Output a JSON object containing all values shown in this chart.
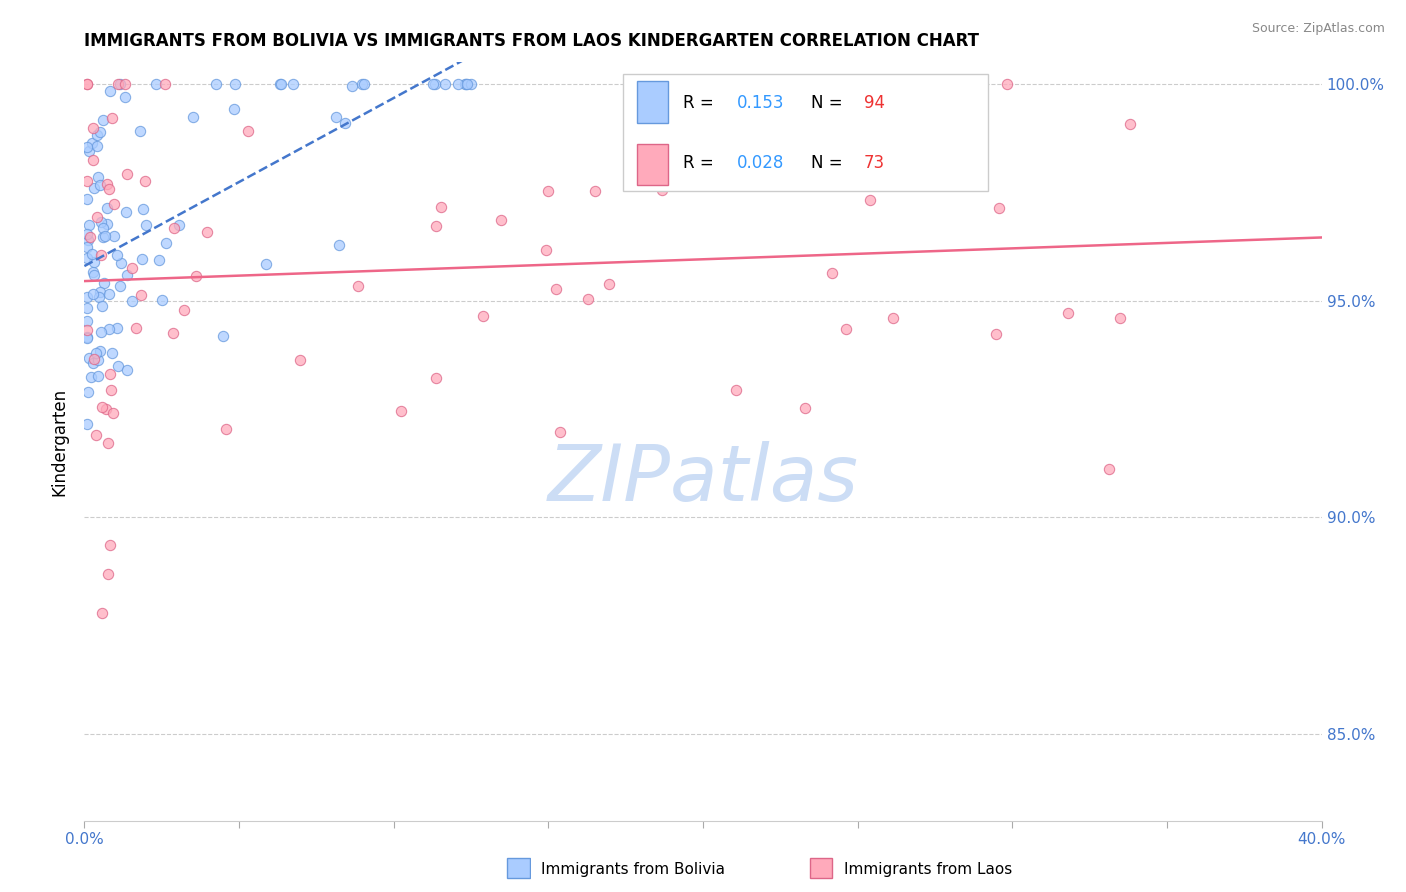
{
  "title": "IMMIGRANTS FROM BOLIVIA VS IMMIGRANTS FROM LAOS KINDERGARTEN CORRELATION CHART",
  "source_text": "Source: ZipAtlas.com",
  "ylabel": "Kindergarten",
  "xlim": [
    0.0,
    0.4
  ],
  "ylim": [
    0.83,
    1.005
  ],
  "right_yticklabels": [
    "100.0%",
    "95.0%",
    "90.0%",
    "85.0%"
  ],
  "right_yticks": [
    1.0,
    0.95,
    0.9,
    0.85
  ],
  "bolivia_color": "#aaccff",
  "bolivia_edge_color": "#6699dd",
  "laos_color": "#ffaabb",
  "laos_edge_color": "#dd6688",
  "bolivia_trend_color": "#4477cc",
  "laos_trend_color": "#ee6688",
  "bolivia_R": 0.153,
  "bolivia_N": 94,
  "laos_R": 0.028,
  "laos_N": 73,
  "watermark_color": "#ccddf5",
  "legend_R_color": "#3399ff",
  "legend_N_color": "#ee3333",
  "grid_color": "#cccccc"
}
